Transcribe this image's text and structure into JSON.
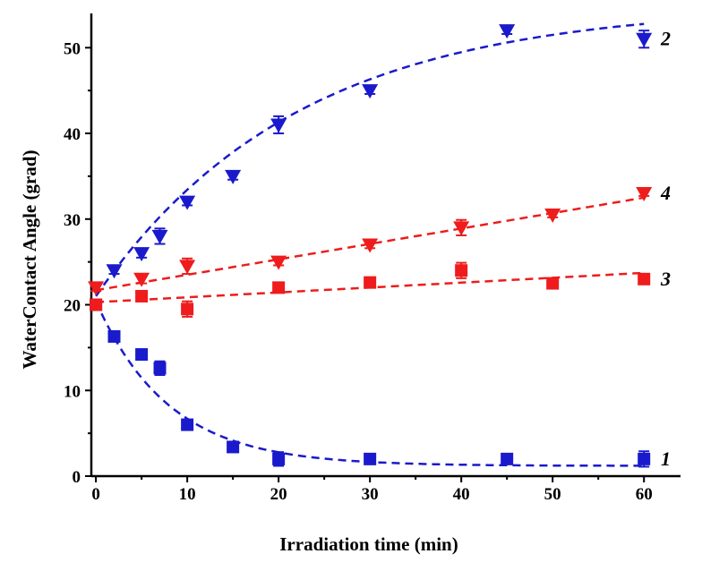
{
  "chart_data": {
    "type": "scatter",
    "title": "",
    "xlabel": "Irradiation time (min)",
    "ylabel": "WaterContact Angle (grad)",
    "xlim": [
      -0.5,
      64
    ],
    "ylim": [
      0,
      54
    ],
    "xticks": [
      0,
      10,
      20,
      30,
      40,
      50,
      60
    ],
    "yticks": [
      0,
      10,
      20,
      30,
      40,
      50
    ],
    "grid": false,
    "legend": "none",
    "series": [
      {
        "label": "1",
        "marker": "square",
        "color": "#1a1acc",
        "x": [
          0,
          2,
          5,
          7,
          10,
          15,
          20,
          30,
          45,
          60
        ],
        "y": [
          20,
          16.3,
          14.2,
          12.6,
          6,
          3.4,
          2,
          2,
          2,
          2
        ],
        "err": [
          0.6,
          0.4,
          0.4,
          0.8,
          0.3,
          0.3,
          0.8,
          0.3,
          0.3,
          0.9
        ],
        "fit": {
          "form": "exp_decay",
          "a": 1.2,
          "b": 19.2,
          "tau": 8
        }
      },
      {
        "label": "2",
        "marker": "triangle-down",
        "color": "#1a1acc",
        "x": [
          2,
          5,
          7,
          10,
          15,
          20,
          30,
          45,
          60
        ],
        "y": [
          24,
          26,
          28,
          32,
          35,
          41,
          45,
          52,
          51
        ],
        "err": [
          0.4,
          0.5,
          0.9,
          0.4,
          0.4,
          1.0,
          0.4,
          0.4,
          1.0
        ],
        "fit": {
          "form": "exp_rise",
          "a": 55,
          "b": 34,
          "tau": 22
        }
      },
      {
        "label": "3",
        "marker": "square",
        "color": "#ee1c1c",
        "x": [
          0,
          5,
          10,
          20,
          30,
          40,
          50,
          60
        ],
        "y": [
          20,
          21,
          19.5,
          22,
          22.6,
          24,
          22.5,
          23
        ],
        "err": [
          0.5,
          0.4,
          0.9,
          0.4,
          0.4,
          0.9,
          0.3,
          0.3
        ],
        "fit": {
          "form": "linear",
          "a": 20.3,
          "b": 0.057
        }
      },
      {
        "label": "4",
        "marker": "triangle-down",
        "color": "#ee1c1c",
        "x": [
          0,
          5,
          10,
          20,
          30,
          40,
          50,
          60
        ],
        "y": [
          22,
          23,
          24.5,
          25,
          27,
          29,
          30.5,
          33
        ],
        "err": [
          0.4,
          0.5,
          0.9,
          0.4,
          0.4,
          0.9,
          0.3,
          0.3
        ],
        "fit": {
          "form": "linear",
          "a": 21.7,
          "b": 0.18
        }
      }
    ]
  }
}
